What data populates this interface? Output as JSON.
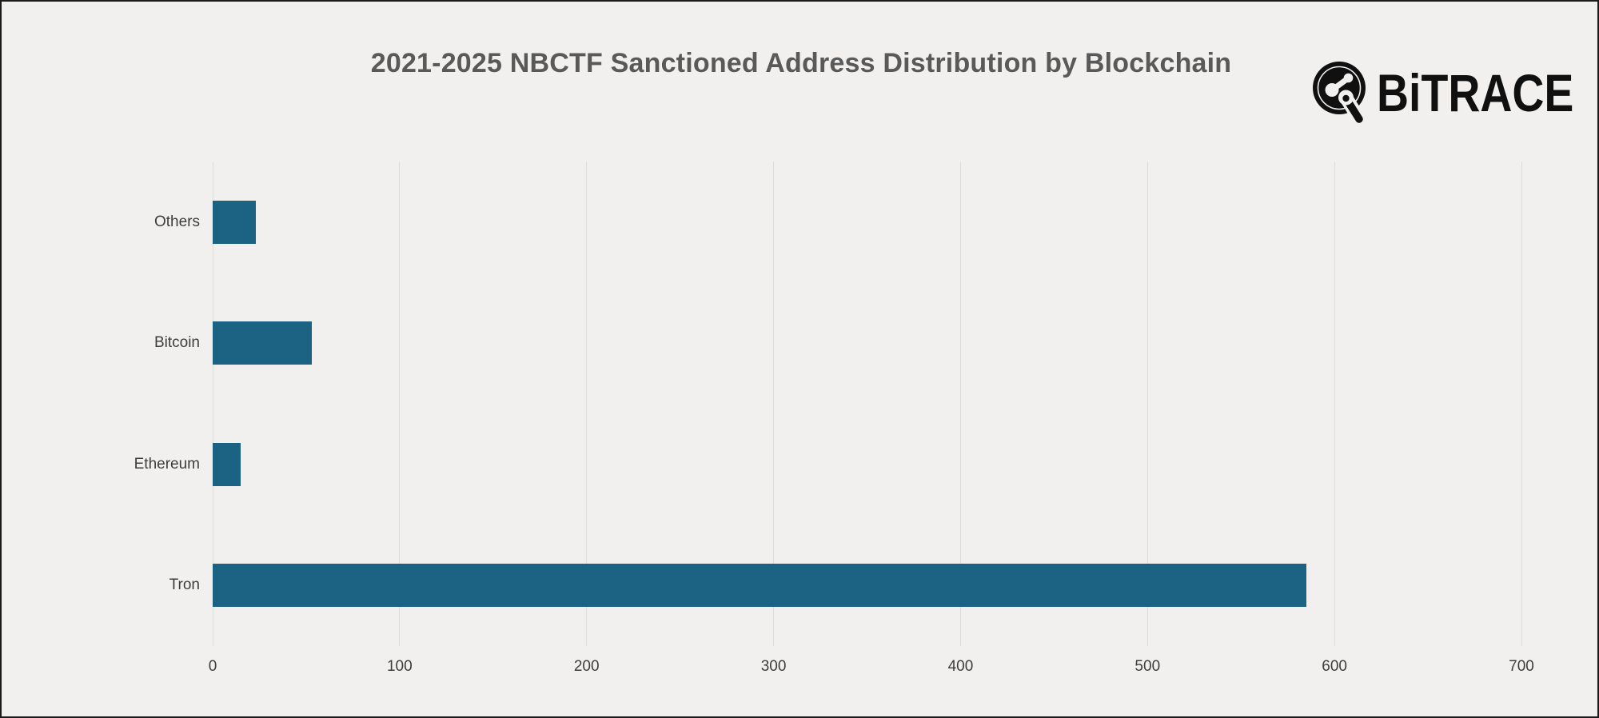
{
  "page": {
    "background_color": "#F1F0EF",
    "border_color": "#1B1B1B"
  },
  "logo": {
    "brand": "BITRACE",
    "parts": {
      "b": "B",
      "i": "i",
      "rest": "TRACE"
    },
    "icon": "bitrace-network-icon",
    "color": "#101010"
  },
  "chart_data": {
    "type": "bar",
    "orientation": "horizontal",
    "title": "2021-2025 NBCTF Sanctioned Address Distribution by Blockchain",
    "xlabel": "",
    "ylabel": "",
    "categories": [
      "Others",
      "Bitcoin",
      "Ethereum",
      "Tron"
    ],
    "values": [
      23,
      53,
      15,
      585
    ],
    "x_ticks": [
      0,
      100,
      200,
      300,
      400,
      500,
      600,
      700
    ],
    "xlim": [
      0,
      700
    ],
    "grid": true,
    "legend": false,
    "bar_color": "#1B6283",
    "gridline_color": "#DDDDDC",
    "title_color": "#595959",
    "tick_label_color": "#3D3D3D"
  }
}
